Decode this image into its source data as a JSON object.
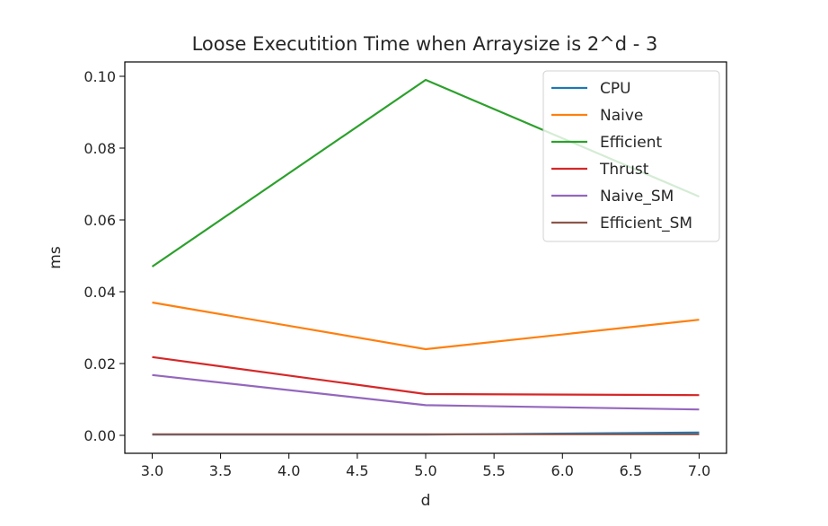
{
  "chart_data": {
    "type": "line",
    "title": "Loose Executition Time when Arraysize is 2^d - 3",
    "xlabel": "d",
    "ylabel": "ms",
    "x": [
      3.0,
      5.0,
      7.0
    ],
    "xlim": [
      2.8,
      7.2
    ],
    "ylim": [
      -0.005,
      0.104
    ],
    "xticks": [
      "3.0",
      "3.5",
      "4.0",
      "4.5",
      "5.0",
      "5.5",
      "6.0",
      "6.5",
      "7.0"
    ],
    "yticks": [
      "0.00",
      "0.02",
      "0.04",
      "0.06",
      "0.08",
      "0.10"
    ],
    "grid": false,
    "legend_position": "top-right",
    "series": [
      {
        "name": "CPU",
        "color": "#1f77b4",
        "values": [
          0.0002,
          0.0002,
          0.0008
        ]
      },
      {
        "name": "Naive",
        "color": "#ff7f0e",
        "values": [
          0.037,
          0.024,
          0.0322
        ]
      },
      {
        "name": "Efficient",
        "color": "#2ca02c",
        "values": [
          0.047,
          0.099,
          0.0665
        ]
      },
      {
        "name": "Thrust",
        "color": "#d62728",
        "values": [
          0.0218,
          0.0115,
          0.0112
        ]
      },
      {
        "name": "Naive_SM",
        "color": "#9467bd",
        "values": [
          0.0168,
          0.0084,
          0.0072
        ]
      },
      {
        "name": "Efficient_SM",
        "color": "#8c564b",
        "values": [
          0.0003,
          0.0003,
          0.0003
        ]
      }
    ]
  }
}
